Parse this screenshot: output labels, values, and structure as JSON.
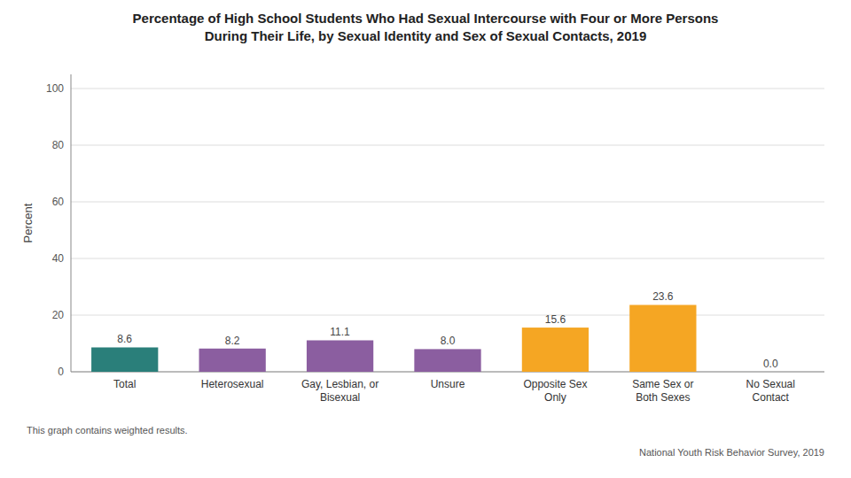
{
  "chart_data": {
    "type": "bar",
    "title": "Percentage of High School Students Who Had Sexual Intercourse with Four or More Persons\nDuring Their Life, by Sexual Identity and Sex of Sexual Contacts, 2019",
    "categories": [
      "Total",
      "Heterosexual",
      "Gay, Lesbian, or\nBisexual",
      "Unsure",
      "Opposite Sex\nOnly",
      "Same Sex or\nBoth Sexes",
      "No Sexual\nContact"
    ],
    "values": [
      8.6,
      8.2,
      11.1,
      8.0,
      15.6,
      23.6,
      0.0
    ],
    "value_labels": [
      "8.6",
      "8.2",
      "11.1",
      "8.0",
      "15.6",
      "23.6",
      "0.0"
    ],
    "data_labels": true,
    "colors": [
      "#2a7f7a",
      "#8b5ea0",
      "#8b5ea0",
      "#8b5ea0",
      "#f5a623",
      "#f5a623",
      "#f5a623"
    ],
    "ylabel": "Percent",
    "ylim": [
      0,
      105
    ],
    "yticks": [
      0,
      20,
      40,
      60,
      80,
      100
    ],
    "grid": true,
    "annotations": [
      "This graph contains weighted results.",
      "National Youth Risk Behavior Survey, 2019"
    ]
  }
}
